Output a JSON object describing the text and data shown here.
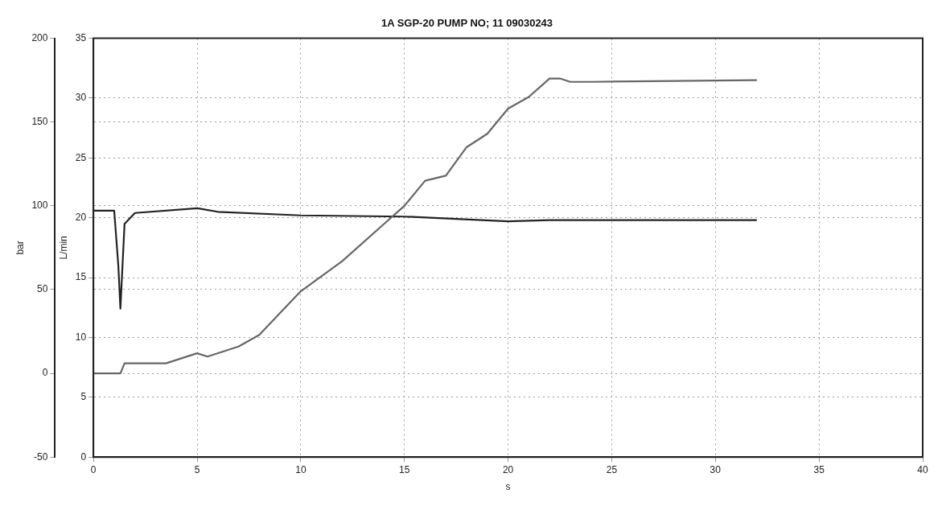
{
  "chart_data": {
    "type": "line",
    "title": "1A SGP-20 PUMP NO; 11 09030243",
    "xlabel": "s",
    "ylabel": "bar",
    "y2label": "L/min",
    "xlim": [
      0,
      40
    ],
    "xticks": [
      0,
      5,
      10,
      15,
      20,
      25,
      30,
      35,
      40
    ],
    "ylim": [
      -50,
      200
    ],
    "yticks": [
      -50,
      0,
      50,
      100,
      150,
      200
    ],
    "y2lim": [
      0,
      35
    ],
    "y2ticks": [
      0,
      5,
      10,
      15,
      20,
      25,
      30,
      35
    ],
    "grid": true,
    "legend": false,
    "marker": "none",
    "series": [
      {
        "color": "#666666",
        "x": [
          0,
          1.3,
          1.5,
          3.5,
          5,
          5.5,
          7,
          8,
          10,
          12,
          14,
          15,
          16,
          17,
          18,
          19,
          20,
          21,
          22,
          22.5,
          23,
          24,
          32
        ],
        "values": [
          0,
          0,
          6,
          6,
          12,
          10,
          16,
          23,
          49,
          67,
          89,
          100,
          115,
          118,
          135,
          143,
          158,
          165,
          176,
          176,
          174,
          174,
          175
        ]
      },
      {
        "color": "#222222",
        "axis": "y2",
        "x": [
          0,
          1,
          1.2,
          1.3,
          1.5,
          2,
          5,
          6,
          10,
          15,
          20,
          22,
          25,
          30,
          32
        ],
        "values": [
          20.6,
          20.6,
          16,
          12.4,
          19.5,
          20.4,
          20.8,
          20.5,
          20.2,
          20.1,
          19.7,
          19.8,
          19.8,
          19.8,
          19.8
        ]
      }
    ]
  }
}
